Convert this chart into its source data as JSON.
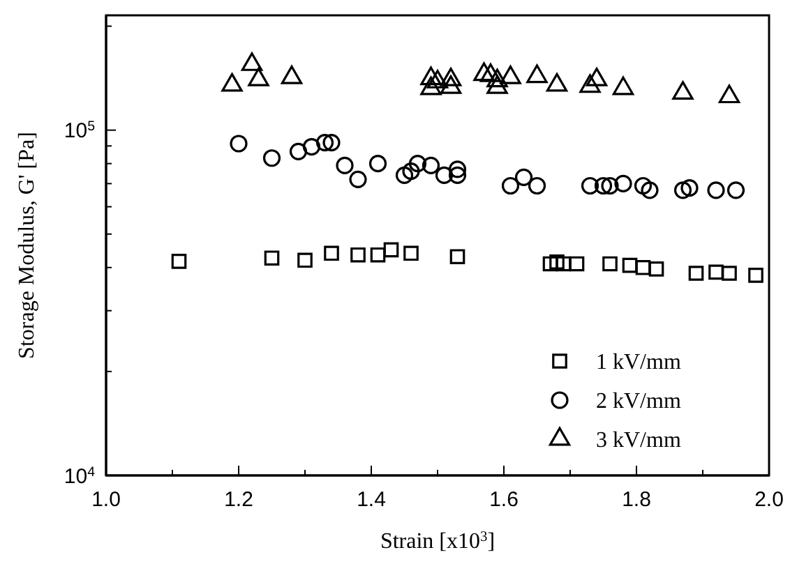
{
  "chart_data": {
    "type": "scatter",
    "xlabel": "Strain  [x10$^{3}$]",
    "ylabel": "Storage Modulus, G' [Pa]",
    "log": "y",
    "xlim": [
      1.0,
      2.0
    ],
    "ylim": [
      10000,
      215000
    ],
    "xticks": [
      {
        "value": 1.0,
        "label": "1.0"
      },
      {
        "value": 1.1,
        "label": null
      },
      {
        "value": 1.2,
        "label": "1.2"
      },
      {
        "value": 1.3,
        "label": null
      },
      {
        "value": 1.4,
        "label": "1.4"
      },
      {
        "value": 1.5,
        "label": null
      },
      {
        "value": 1.6,
        "label": "1.6"
      },
      {
        "value": 1.7,
        "label": null
      },
      {
        "value": 1.8,
        "label": "1.8"
      },
      {
        "value": 1.9,
        "label": null
      },
      {
        "value": 2.0,
        "label": "2.0"
      }
    ],
    "yticks": [
      {
        "value": 10000,
        "label": "10$^{4}$"
      },
      {
        "value": 20000,
        "label": null
      },
      {
        "value": 30000,
        "label": null
      },
      {
        "value": 40000,
        "label": null
      },
      {
        "value": 50000,
        "label": null
      },
      {
        "value": 60000,
        "label": null
      },
      {
        "value": 70000,
        "label": null
      },
      {
        "value": 80000,
        "label": null
      },
      {
        "value": 90000,
        "label": null
      },
      {
        "value": 100000,
        "label": "10$^{5}$"
      },
      {
        "value": 200000,
        "label": null
      }
    ],
    "legend": "bottom right",
    "grid": false,
    "series": [
      {
        "name": "1 kV/mm",
        "color": "#000000",
        "marker": "square",
        "x": [
          1.11,
          1.25,
          1.3,
          1.34,
          1.38,
          1.41,
          1.43,
          1.46,
          1.53,
          1.67,
          1.68,
          1.69,
          1.71,
          1.76,
          1.79,
          1.81,
          1.83,
          1.89,
          1.92,
          1.94,
          1.98
        ],
        "values": [
          41700,
          42600,
          42000,
          44000,
          43500,
          43500,
          45000,
          44000,
          43000,
          41000,
          41500,
          41000,
          41000,
          41000,
          40600,
          40000,
          39600,
          38500,
          38800,
          38500,
          38000
        ]
      },
      {
        "name": "2 kV/mm",
        "color": "#000000",
        "marker": "circle",
        "x": [
          1.2,
          1.25,
          1.29,
          1.31,
          1.33,
          1.34,
          1.36,
          1.38,
          1.41,
          1.45,
          1.46,
          1.47,
          1.49,
          1.51,
          1.53,
          1.53,
          1.61,
          1.63,
          1.65,
          1.73,
          1.75,
          1.76,
          1.78,
          1.81,
          1.82,
          1.87,
          1.88,
          1.92,
          1.95
        ],
        "values": [
          91400,
          83000,
          86700,
          89500,
          92000,
          92000,
          79000,
          72000,
          80000,
          74000,
          76000,
          80000,
          79000,
          74000,
          77000,
          74000,
          69000,
          73000,
          69000,
          69000,
          69000,
          69000,
          70000,
          69000,
          67000,
          67000,
          68000,
          67000,
          67000
        ]
      },
      {
        "name": "3 kV/mm",
        "color": "#000000",
        "marker": "triangle",
        "x": [
          1.19,
          1.22,
          1.23,
          1.28,
          1.49,
          1.49,
          1.5,
          1.52,
          1.52,
          1.57,
          1.58,
          1.59,
          1.59,
          1.61,
          1.65,
          1.68,
          1.73,
          1.74,
          1.78,
          1.87,
          1.94
        ],
        "values": [
          135000,
          155000,
          140000,
          142000,
          141000,
          132000,
          138000,
          140000,
          133000,
          145000,
          144000,
          139000,
          133000,
          142000,
          143000,
          135000,
          134000,
          140000,
          132000,
          128000,
          125000
        ]
      }
    ]
  }
}
